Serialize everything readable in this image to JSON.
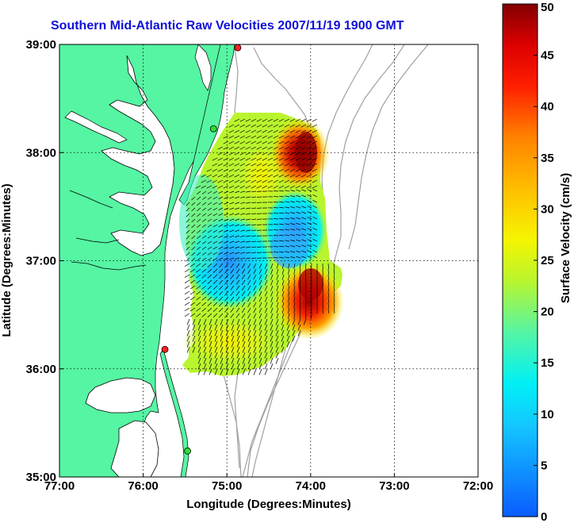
{
  "title": "Southern Mid-Atlantic Raw Velocities 2007/11/19 1900 GMT",
  "map": {
    "lon_ticks": [
      "77:00",
      "76:00",
      "75:00",
      "74:00",
      "73:00",
      "72:00"
    ],
    "lat_ticks": [
      "39:00",
      "38:00",
      "37:00",
      "36:00",
      "35:00"
    ],
    "xlabel": "Longitude (Degrees:Minutes)",
    "ylabel": "Latitude (Degrees:Minutes)",
    "lon_range": [
      -77,
      -72
    ],
    "lat_range": [
      35,
      39
    ],
    "colors": {
      "land": "#55f5a3",
      "water": "#ffffff",
      "bathymetry": "#a0a0a0",
      "grid": "#000000"
    },
    "sites": [
      {
        "lon": -74.87,
        "lat": 38.97,
        "color": "#ff2020"
      },
      {
        "lon": -75.16,
        "lat": 38.22,
        "color": "#30dd30"
      },
      {
        "lon": -75.74,
        "lat": 36.18,
        "color": "#ff2020"
      },
      {
        "lon": -75.47,
        "lat": 35.24,
        "color": "#30dd30"
      }
    ]
  },
  "colorbar": {
    "label": "Surface Velocity (cm/s)",
    "ticks": [
      "0",
      "5",
      "10",
      "15",
      "20",
      "25",
      "30",
      "35",
      "40",
      "45",
      "50"
    ],
    "range": [
      0,
      50
    ]
  }
}
